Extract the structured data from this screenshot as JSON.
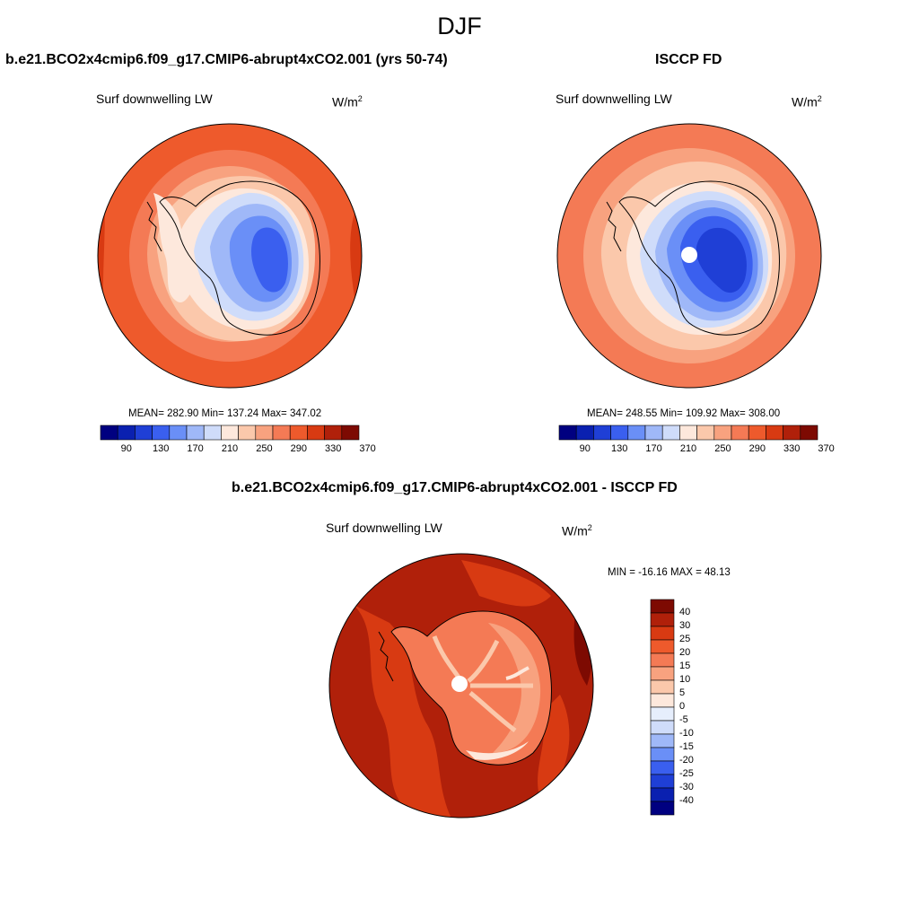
{
  "figure": {
    "title": "DJF"
  },
  "panel_left": {
    "title": "b.e21.BCO2x4cmip6.f09_g17.CMIP6-abrupt4xCO2.001 (yrs 50-74)",
    "variable": "Surf downwelling LW",
    "units_base": "W/m",
    "units_exp": "2",
    "stats": "MEAN= 282.90  Min= 137.24  Max= 347.02",
    "colorbar_ticks": [
      "90",
      "130",
      "170",
      "210",
      "250",
      "290",
      "330",
      "370"
    ]
  },
  "panel_right": {
    "title": "ISCCP FD",
    "variable": "Surf downwelling LW",
    "units_base": "W/m",
    "units_exp": "2",
    "stats": "MEAN= 248.55  Min= 109.92  Max= 308.00",
    "colorbar_ticks": [
      "90",
      "130",
      "170",
      "210",
      "250",
      "290",
      "330",
      "370"
    ]
  },
  "panel_diff": {
    "title": "b.e21.BCO2x4cmip6.f09_g17.CMIP6-abrupt4xCO2.001 - ISCCP FD",
    "variable": "Surf downwelling LW",
    "units": "W/m",
    "stats": "MIN = -16.16 MAX =  48.13",
    "colorbar_ticks": [
      "40",
      "30",
      "25",
      "20",
      "15",
      "10",
      "5",
      "0",
      "-5",
      "-10",
      "-15",
      "-20",
      "-25",
      "-30",
      "-40"
    ]
  },
  "colors": {
    "abs_scale": [
      "#000080",
      "#0a20b0",
      "#1f3fd6",
      "#3a5fef",
      "#6a8ff7",
      "#9fb8f8",
      "#cfdcfa",
      "#fde8dc",
      "#fbc8ab",
      "#f8a27f",
      "#f47a55",
      "#ee5a2c",
      "#d83a12",
      "#b0200a",
      "#7d0a02"
    ],
    "diff_scale": [
      "#000080",
      "#0a20b0",
      "#1f3fd6",
      "#3a5fef",
      "#6a8ff7",
      "#9fb8f8",
      "#cfdcfa",
      "#e6eefc",
      "#fde8dc",
      "#fbc8ab",
      "#f8a27f",
      "#f47a55",
      "#ee5a2c",
      "#d83a12",
      "#b0200a",
      "#7d0a02"
    ]
  }
}
